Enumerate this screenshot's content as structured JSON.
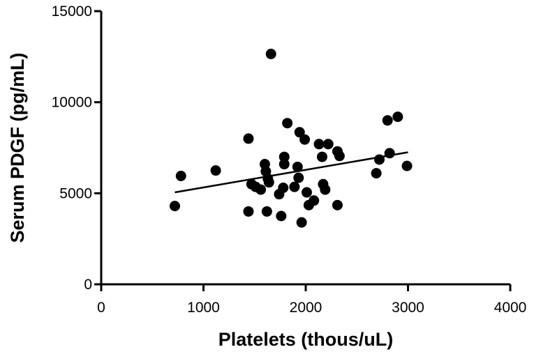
{
  "chart_data": {
    "type": "scatter",
    "xlabel": "Platelets (thous/uL)",
    "ylabel": "Serum PDGF (pg/mL)",
    "xlim": [
      0,
      4000
    ],
    "ylim": [
      0,
      15000
    ],
    "x_ticks": [
      0,
      1000,
      2000,
      3000,
      4000
    ],
    "y_ticks": [
      0,
      5000,
      10000,
      15000
    ],
    "x_tick_labels": [
      "0",
      "1000",
      "2000",
      "3000",
      "4000"
    ],
    "y_tick_labels": [
      "0",
      "5000",
      "10000",
      "15000"
    ],
    "grid": false,
    "legend": "none",
    "points": [
      {
        "x": 720,
        "y": 4300
      },
      {
        "x": 780,
        "y": 5950
      },
      {
        "x": 1120,
        "y": 6250
      },
      {
        "x": 1440,
        "y": 8000
      },
      {
        "x": 1440,
        "y": 4000
      },
      {
        "x": 1470,
        "y": 5500
      },
      {
        "x": 1510,
        "y": 5350
      },
      {
        "x": 1560,
        "y": 5200
      },
      {
        "x": 1600,
        "y": 6600
      },
      {
        "x": 1610,
        "y": 6200
      },
      {
        "x": 1630,
        "y": 5800
      },
      {
        "x": 1640,
        "y": 5600
      },
      {
        "x": 1620,
        "y": 4000
      },
      {
        "x": 1660,
        "y": 12650
      },
      {
        "x": 1740,
        "y": 4950
      },
      {
        "x": 1760,
        "y": 3750
      },
      {
        "x": 1780,
        "y": 5300
      },
      {
        "x": 1790,
        "y": 7000
      },
      {
        "x": 1790,
        "y": 6600
      },
      {
        "x": 1820,
        "y": 8850
      },
      {
        "x": 1890,
        "y": 5350
      },
      {
        "x": 1920,
        "y": 6450
      },
      {
        "x": 1930,
        "y": 5850
      },
      {
        "x": 1940,
        "y": 8350
      },
      {
        "x": 1960,
        "y": 3400
      },
      {
        "x": 1990,
        "y": 7950
      },
      {
        "x": 2010,
        "y": 5050
      },
      {
        "x": 2030,
        "y": 4350
      },
      {
        "x": 2080,
        "y": 4600
      },
      {
        "x": 2130,
        "y": 7700
      },
      {
        "x": 2160,
        "y": 7000
      },
      {
        "x": 2170,
        "y": 5500
      },
      {
        "x": 2190,
        "y": 5200
      },
      {
        "x": 2220,
        "y": 7700
      },
      {
        "x": 2310,
        "y": 7300
      },
      {
        "x": 2330,
        "y": 7050
      },
      {
        "x": 2310,
        "y": 4350
      },
      {
        "x": 2690,
        "y": 6100
      },
      {
        "x": 2720,
        "y": 6850
      },
      {
        "x": 2800,
        "y": 9000
      },
      {
        "x": 2820,
        "y": 7200
      },
      {
        "x": 2900,
        "y": 9200
      },
      {
        "x": 2990,
        "y": 6500
      }
    ],
    "fit_line": {
      "x": [
        720,
        3000
      ],
      "y": [
        5050,
        7250
      ]
    }
  }
}
